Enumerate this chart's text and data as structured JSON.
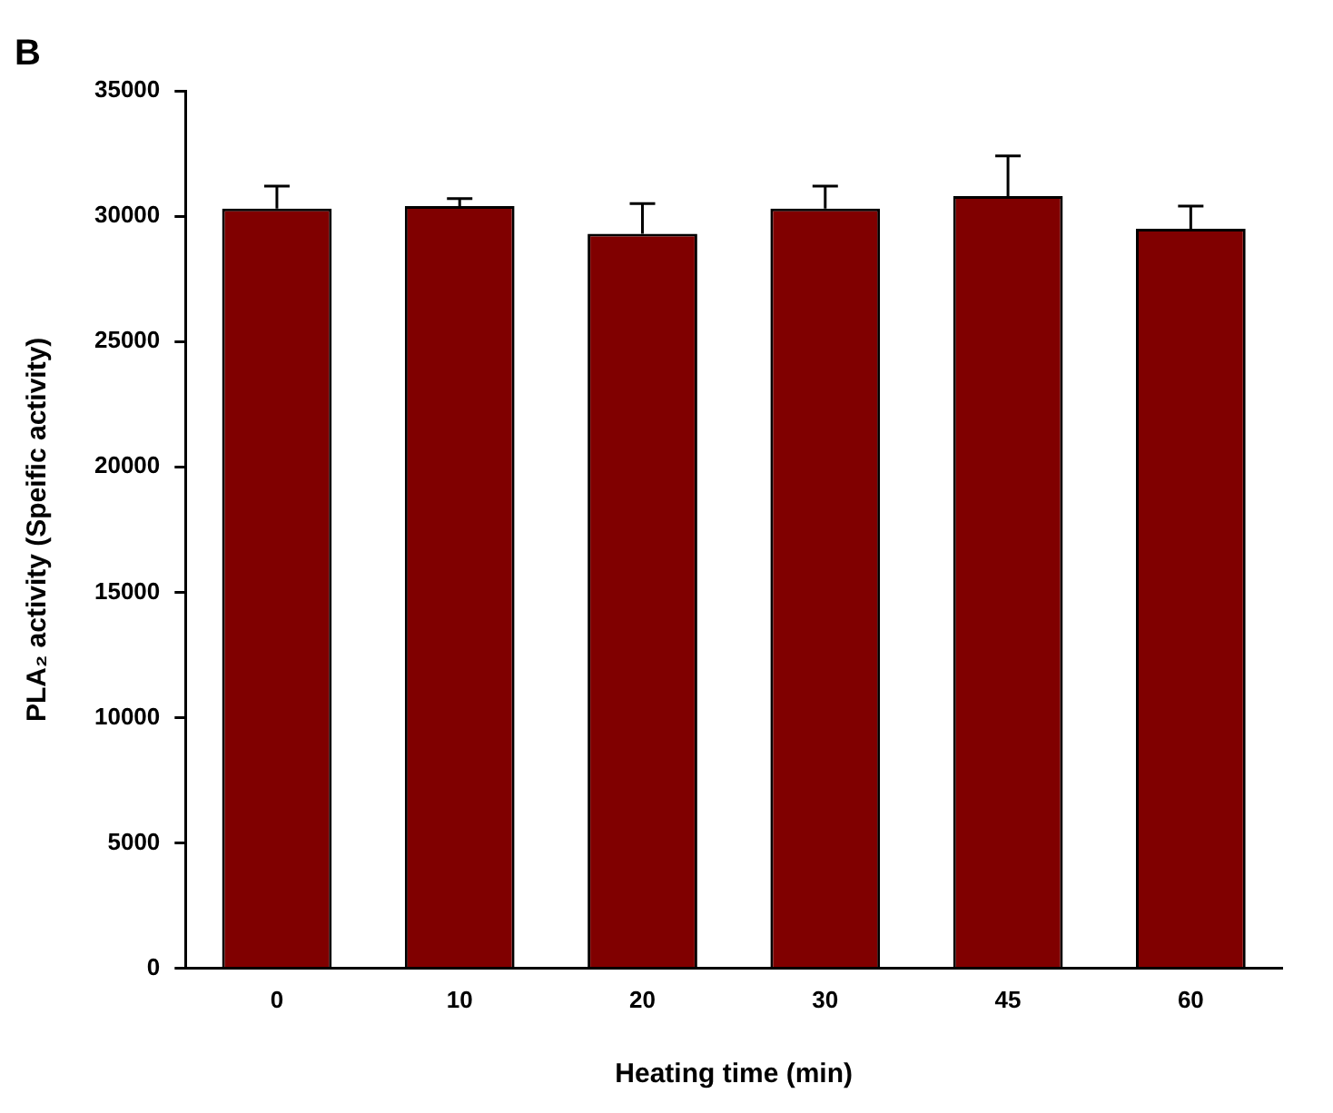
{
  "chart_data": {
    "type": "bar",
    "title": "B",
    "xlabel": "Heating time (min)",
    "ylabel": "PLA₂ activity (Speific activity)",
    "categories": [
      "0",
      "10",
      "20",
      "30",
      "45",
      "60"
    ],
    "values": [
      30300,
      30400,
      29300,
      30300,
      30800,
      29500
    ],
    "errors": [
      900,
      300,
      1200,
      900,
      1600,
      900
    ],
    "color": "#800000",
    "ylim": [
      0,
      35000
    ],
    "yticks": [
      0,
      5000,
      10000,
      15000,
      20000,
      25000,
      30000,
      35000
    ],
    "grid": false,
    "legend": false
  }
}
